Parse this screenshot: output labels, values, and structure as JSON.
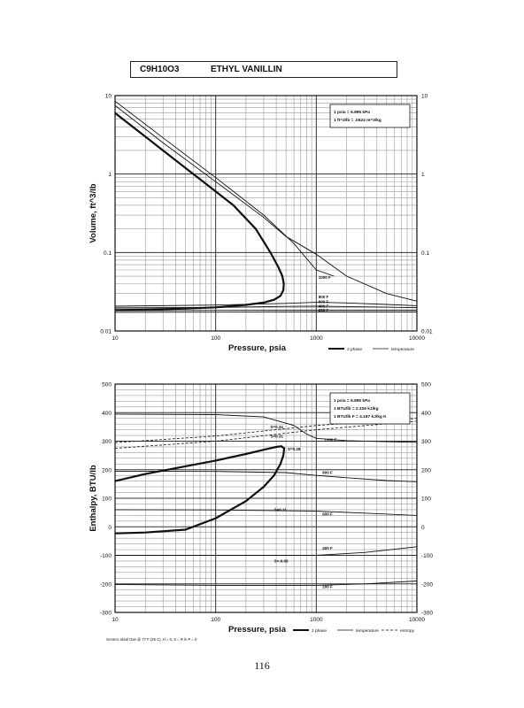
{
  "title": {
    "formula": "C9H10O3",
    "name": "ETHYL VANILLIN"
  },
  "page_number": "116",
  "chart_data": [
    {
      "type": "line",
      "xscale": "log",
      "yscale": "log",
      "xlabel": "Pressure,  psia",
      "ylabel": "Volume, ft^3/lb",
      "xlim": [
        10,
        10000
      ],
      "ylim": [
        0.01,
        10
      ],
      "xticks": [
        "10",
        "100",
        "1000",
        "10000"
      ],
      "yticks": [
        "0.01",
        "0.1",
        "1",
        "10"
      ],
      "yticks_right": [
        "0.01",
        "0.1",
        "1",
        "10"
      ],
      "grid": true,
      "conversion_note": [
        "1 psia  =  6.895 kPa",
        "1 ft^3/lb  =  .0624 m^3/kg"
      ],
      "legend": [
        "2 phase",
        "temperature"
      ],
      "series": [
        {
          "kind": "2 phase",
          "x": [
            10,
            20,
            40,
            80,
            150,
            250,
            350,
            420,
            460,
            475,
            470,
            440,
            380,
            300,
            200,
            100,
            50,
            20,
            10
          ],
          "y": [
            6.0,
            3.0,
            1.5,
            0.75,
            0.4,
            0.2,
            0.1,
            0.065,
            0.05,
            0.04,
            0.033,
            0.028,
            0.025,
            0.023,
            0.0215,
            0.02,
            0.0193,
            0.0187,
            0.0185
          ]
        },
        {
          "kind": "temperature",
          "x": [
            10,
            30,
            100,
            300,
            600,
            1000,
            1500
          ],
          "y": [
            8.5,
            2.9,
            0.9,
            0.3,
            0.13,
            0.06,
            0.05
          ]
        },
        {
          "kind": "temperature",
          "x": [
            10,
            30,
            100,
            300,
            500,
            1000,
            2000,
            5000,
            10000
          ],
          "y": [
            7.5,
            2.5,
            0.8,
            0.28,
            0.16,
            0.095,
            0.05,
            0.03,
            0.024
          ]
        },
        {
          "kind": "temperature",
          "x": [
            10,
            100,
            500,
            1000,
            2000,
            5000,
            10000
          ],
          "y": [
            0.0207,
            0.0214,
            0.0225,
            0.0232,
            0.0228,
            0.0218,
            0.021
          ]
        },
        {
          "kind": "temperature",
          "x": [
            10,
            100,
            500,
            1000,
            2000,
            5000,
            10000
          ],
          "y": [
            0.0196,
            0.02,
            0.0206,
            0.0207,
            0.0205,
            0.0201,
            0.0198
          ]
        },
        {
          "kind": "temperature",
          "x": [
            10,
            100,
            1000,
            10000
          ],
          "y": [
            0.0181,
            0.0183,
            0.0184,
            0.0184
          ]
        },
        {
          "kind": "temperature",
          "x": [
            10,
            100,
            1000,
            10000
          ],
          "y": [
            0.0173,
            0.0174,
            0.0175,
            0.0175
          ]
        }
      ],
      "annotations": [
        {
          "text": "1000 F",
          "x": 1050,
          "y": 0.046
        },
        {
          "text": "800 F",
          "x": 1050,
          "y": 0.0262
        },
        {
          "text": "600 F",
          "x": 1050,
          "y": 0.0228
        },
        {
          "text": "400 F",
          "x": 1050,
          "y": 0.02
        },
        {
          "text": "200 F",
          "x": 1050,
          "y": 0.0178
        }
      ]
    },
    {
      "type": "line",
      "xscale": "log",
      "yscale": "linear",
      "xlabel": "Pressure,  psia",
      "ylabel": "Enthalpy, BTU/lb",
      "xlim": [
        10,
        10000
      ],
      "ylim": [
        -300,
        500
      ],
      "xticks": [
        "10",
        "100",
        "1000",
        "10000"
      ],
      "yticks": [
        "-300",
        "-200",
        "-100",
        "0",
        "100",
        "200",
        "300",
        "400",
        "500"
      ],
      "yticks_right": [
        "-300",
        "-200",
        "-100",
        "0",
        "100",
        "200",
        "300",
        "400",
        "500"
      ],
      "grid": true,
      "conversion_note": [
        "1 psia  =  6.895 kPa",
        "1 BTU/lb  =  2.326 kJ/kg",
        "1 BTU/lb F  =  4.187 kJ/kg K"
      ],
      "legend": [
        "2 phase",
        "temperature",
        "entropy"
      ],
      "footnote": "Generic Ideal Gas @ 77 F (25 C),  H = 0,  S = R ln P = 0",
      "series": [
        {
          "kind": "2 phase",
          "x": [
            10,
            20,
            50,
            100,
            200,
            300,
            400,
            450,
            480,
            470,
            440,
            380,
            300,
            200,
            100,
            50,
            20,
            10
          ],
          "y": [
            160,
            185,
            212,
            232,
            255,
            270,
            280,
            282,
            275,
            250,
            220,
            180,
            140,
            90,
            30,
            -10,
            -20,
            -23
          ]
        },
        {
          "kind": "temperature",
          "x": [
            10,
            100,
            300,
            600,
            800,
            1000,
            2000,
            5000,
            10000
          ],
          "y": [
            395,
            393,
            385,
            355,
            325,
            310,
            302,
            298,
            296
          ]
        },
        {
          "kind": "temperature",
          "x": [
            10,
            100,
            500,
            1000,
            2000,
            5000,
            10000
          ],
          "y": [
            195,
            194,
            190,
            180,
            172,
            162,
            158
          ]
        },
        {
          "kind": "temperature",
          "x": [
            10,
            100,
            1000,
            3000,
            10000
          ],
          "y": [
            60,
            59,
            55,
            48,
            40
          ]
        },
        {
          "kind": "temperature",
          "x": [
            10,
            100,
            1000,
            3000,
            10000
          ],
          "y": [
            -100,
            -100,
            -100,
            -90,
            -70
          ]
        },
        {
          "kind": "temperature",
          "x": [
            10,
            100,
            1000,
            3000,
            10000
          ],
          "y": [
            -202,
            -205,
            -205,
            -200,
            -190
          ]
        },
        {
          "kind": "entropy",
          "x": [
            10,
            100,
            1000,
            10000
          ],
          "y": [
            295,
            318,
            355,
            380
          ]
        },
        {
          "kind": "entropy",
          "x": [
            10,
            100,
            1000,
            10000
          ],
          "y": [
            275,
            300,
            340,
            370
          ]
        }
      ],
      "annotations": [
        {
          "text": "S=0.34",
          "x": 350,
          "y": 345
        },
        {
          "text": "S=0.31",
          "x": 350,
          "y": 312
        },
        {
          "text": "1000 F",
          "x": 1200,
          "y": 300
        },
        {
          "text": "S=0.28",
          "x": 520,
          "y": 268
        },
        {
          "text": "800 F",
          "x": 1150,
          "y": 185
        },
        {
          "text": "S=0.11",
          "x": 380,
          "y": 55
        },
        {
          "text": "600 F",
          "x": 1150,
          "y": 40
        },
        {
          "text": "400 F",
          "x": 1150,
          "y": -80
        },
        {
          "text": "S=-0.06",
          "x": 380,
          "y": -125
        },
        {
          "text": "200 F",
          "x": 1150,
          "y": -215
        }
      ]
    }
  ]
}
